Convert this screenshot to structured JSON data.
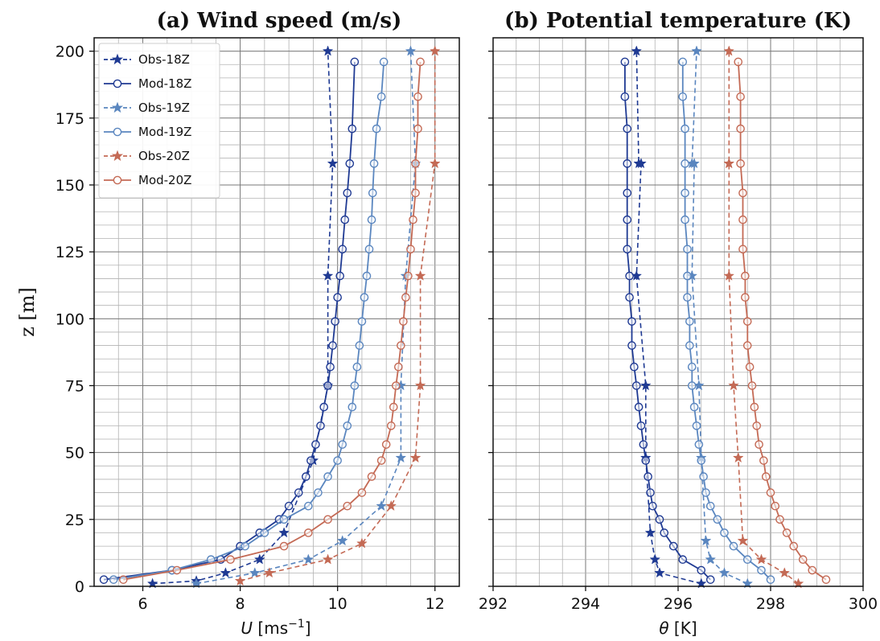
{
  "colors": {
    "s18": "#1f3a93",
    "s19": "#5a86bf",
    "s20": "#c46a55"
  },
  "chart_data": [
    {
      "type": "line",
      "title": "(a) Wind speed (m/s)",
      "xlabel": "U [ms⁻¹]",
      "ylabel": "z [m]",
      "xlim": [
        5.0,
        12.5
      ],
      "ylim": [
        0,
        205
      ],
      "xticks": [
        6,
        8,
        10,
        12
      ],
      "yticks": [
        0,
        25,
        50,
        75,
        100,
        125,
        150,
        175,
        200
      ],
      "grid": true,
      "legend_position": "top-left",
      "series": [
        {
          "name": "Obs-18Z",
          "style": "obs",
          "color": "s18",
          "x": [
            6.2,
            7.1,
            7.7,
            8.4,
            8.9,
            9.5,
            9.8,
            9.8,
            9.9,
            9.8
          ],
          "y": [
            1,
            2,
            5,
            10,
            20,
            47,
            75,
            116,
            158,
            200
          ]
        },
        {
          "name": "Mod-18Z",
          "style": "mod",
          "color": "s18",
          "x": [
            5.2,
            6.6,
            7.6,
            8.0,
            8.4,
            8.8,
            9.0,
            9.2,
            9.35,
            9.45,
            9.55,
            9.65,
            9.72,
            9.8,
            9.85,
            9.9,
            9.95,
            10.0,
            10.05,
            10.1,
            10.15,
            10.2,
            10.25,
            10.3,
            10.35
          ],
          "y": [
            2.5,
            6,
            10,
            15,
            20,
            25,
            30,
            35,
            41,
            47,
            53,
            60,
            67,
            75,
            82,
            90,
            99,
            108,
            116,
            126,
            137,
            147,
            158,
            171,
            196
          ]
        },
        {
          "name": "Obs-19Z",
          "style": "obs",
          "color": "s19",
          "x": [
            7.1,
            8.3,
            9.4,
            10.1,
            10.9,
            11.3,
            11.3,
            11.4,
            11.6,
            11.5
          ],
          "y": [
            1,
            5,
            10,
            17,
            30,
            48,
            75,
            116,
            158,
            200
          ]
        },
        {
          "name": "Mod-19Z",
          "style": "mod",
          "color": "s19",
          "x": [
            5.4,
            6.6,
            7.4,
            8.1,
            8.5,
            8.9,
            9.4,
            9.6,
            9.8,
            10.0,
            10.1,
            10.2,
            10.3,
            10.35,
            10.4,
            10.45,
            10.5,
            10.55,
            10.6,
            10.65,
            10.7,
            10.72,
            10.75,
            10.8,
            10.9,
            10.95
          ],
          "y": [
            2.5,
            6,
            10,
            15,
            20,
            25,
            30,
            35,
            41,
            47,
            53,
            60,
            67,
            75,
            82,
            90,
            99,
            108,
            116,
            126,
            137,
            147,
            158,
            171,
            183,
            196
          ]
        },
        {
          "name": "Obs-20Z",
          "style": "obs",
          "color": "s20",
          "x": [
            8.0,
            8.6,
            9.8,
            10.5,
            11.1,
            11.6,
            11.7,
            11.7,
            12.0,
            12.0
          ],
          "y": [
            2,
            5,
            10,
            16,
            30,
            48,
            75,
            116,
            158,
            200
          ]
        },
        {
          "name": "Mod-20Z",
          "style": "mod",
          "color": "s20",
          "x": [
            5.6,
            6.7,
            7.8,
            8.9,
            9.4,
            9.8,
            10.2,
            10.5,
            10.7,
            10.9,
            11.0,
            11.1,
            11.15,
            11.2,
            11.25,
            11.3,
            11.35,
            11.4,
            11.45,
            11.5,
            11.55,
            11.6,
            11.6,
            11.65,
            11.65,
            11.7
          ],
          "y": [
            2.5,
            6,
            10,
            15,
            20,
            25,
            30,
            35,
            41,
            47,
            53,
            60,
            67,
            75,
            82,
            90,
            99,
            108,
            116,
            126,
            137,
            147,
            158,
            171,
            183,
            196
          ]
        }
      ]
    },
    {
      "type": "line",
      "title": "(b) Potential temperature (K)",
      "xlabel": "θ [K]",
      "ylabel": "",
      "xlim": [
        292,
        300
      ],
      "ylim": [
        0,
        205
      ],
      "xticks": [
        292,
        294,
        296,
        298,
        300
      ],
      "yticks": [
        0,
        25,
        50,
        75,
        100,
        125,
        150,
        175,
        200
      ],
      "grid": true,
      "series": [
        {
          "name": "Obs-18Z",
          "style": "obs",
          "color": "s18",
          "x": [
            296.5,
            295.6,
            295.5,
            295.4,
            295.3,
            295.3,
            295.1,
            295.2,
            295.15,
            295.1
          ],
          "y": [
            1,
            5,
            10,
            20,
            48,
            75,
            116,
            158,
            158,
            200
          ]
        },
        {
          "name": "Mod-18Z",
          "style": "mod",
          "color": "s18",
          "x": [
            296.7,
            296.5,
            296.1,
            295.9,
            295.7,
            295.6,
            295.45,
            295.4,
            295.35,
            295.3,
            295.25,
            295.2,
            295.15,
            295.1,
            295.05,
            295.0,
            295.0,
            294.95,
            294.95,
            294.9,
            294.9,
            294.9,
            294.9,
            294.9,
            294.85,
            294.85
          ],
          "y": [
            2.5,
            6,
            10,
            15,
            20,
            25,
            30,
            35,
            41,
            47,
            53,
            60,
            67,
            75,
            82,
            90,
            99,
            108,
            116,
            126,
            137,
            147,
            158,
            171,
            183,
            196
          ]
        },
        {
          "name": "Obs-19Z",
          "style": "obs",
          "color": "s19",
          "x": [
            297.5,
            297.0,
            296.7,
            296.6,
            296.5,
            296.45,
            296.3,
            296.35,
            296.3,
            296.4
          ],
          "y": [
            1,
            5,
            10,
            17,
            48,
            75,
            116,
            158,
            158,
            200
          ]
        },
        {
          "name": "Mod-19Z",
          "style": "mod",
          "color": "s19",
          "x": [
            298.0,
            297.8,
            297.5,
            297.2,
            297.0,
            296.85,
            296.7,
            296.6,
            296.55,
            296.5,
            296.45,
            296.4,
            296.35,
            296.3,
            296.3,
            296.25,
            296.25,
            296.2,
            296.2,
            296.2,
            296.15,
            296.15,
            296.15,
            296.15,
            296.1,
            296.1
          ],
          "y": [
            2.5,
            6,
            10,
            15,
            20,
            25,
            30,
            35,
            41,
            47,
            53,
            60,
            67,
            75,
            82,
            90,
            99,
            108,
            116,
            126,
            137,
            147,
            158,
            171,
            183,
            196
          ]
        },
        {
          "name": "Obs-20Z",
          "style": "obs",
          "color": "s20",
          "x": [
            298.6,
            298.3,
            297.8,
            297.4,
            297.3,
            297.2,
            297.1,
            297.1,
            297.1,
            297.1
          ],
          "y": [
            1,
            5,
            10,
            17,
            48,
            75,
            116,
            158,
            158,
            200
          ]
        },
        {
          "name": "Mod-20Z",
          "style": "mod",
          "color": "s20",
          "x": [
            299.2,
            298.9,
            298.7,
            298.5,
            298.35,
            298.2,
            298.1,
            298.0,
            297.9,
            297.85,
            297.75,
            297.7,
            297.65,
            297.6,
            297.55,
            297.5,
            297.5,
            297.45,
            297.45,
            297.4,
            297.4,
            297.4,
            297.35,
            297.35,
            297.35,
            297.3
          ],
          "y": [
            2.5,
            6,
            10,
            15,
            20,
            25,
            30,
            35,
            41,
            47,
            53,
            60,
            67,
            75,
            82,
            90,
            99,
            108,
            116,
            126,
            137,
            147,
            158,
            171,
            183,
            196
          ]
        }
      ]
    }
  ]
}
